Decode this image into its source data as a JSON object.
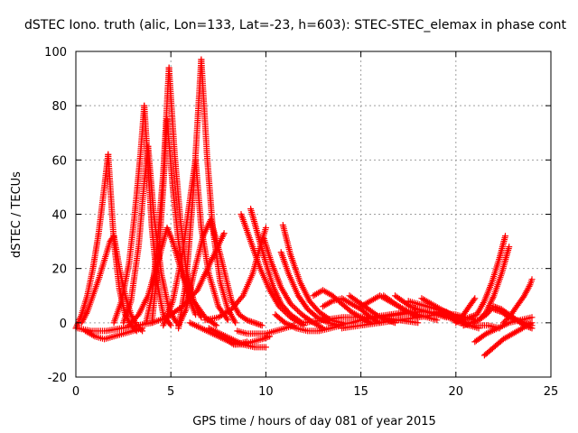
{
  "chart_data": {
    "type": "scatter",
    "title": "dSTEC Iono. truth (alic, Lon=133, Lat=-23, h=603): STEC-STEC_elemax in phase cont",
    "xlabel": "GPS time / hours of day 081 of year 2015",
    "ylabel": "dSTEC  / TECUs",
    "xlim": [
      0,
      25
    ],
    "ylim": [
      -20,
      100
    ],
    "xticks": [
      0,
      5,
      10,
      15,
      20,
      25
    ],
    "yticks": [
      -20,
      0,
      20,
      40,
      60,
      80,
      100
    ],
    "grid": true,
    "marker": "+",
    "color": "#ff0000",
    "series": [
      {
        "x": [
          0.0,
          0.3,
          0.6,
          0.9,
          1.2,
          1.5,
          1.7
        ],
        "y": [
          -2,
          3,
          10,
          20,
          33,
          50,
          62
        ]
      },
      {
        "x": [
          1.7,
          2.0,
          2.3,
          2.6,
          2.9,
          3.2
        ],
        "y": [
          62,
          30,
          12,
          3,
          -1,
          -3
        ]
      },
      {
        "x": [
          0.3,
          0.6,
          0.9,
          1.2,
          1.5,
          1.8,
          2.0
        ],
        "y": [
          0,
          4,
          10,
          16,
          23,
          30,
          32
        ]
      },
      {
        "x": [
          2.0,
          2.3,
          2.6,
          2.9,
          3.2,
          3.5
        ],
        "y": [
          32,
          20,
          10,
          3,
          -1,
          -3
        ]
      },
      {
        "x": [
          2.0,
          2.4,
          2.8,
          3.1,
          3.4,
          3.6
        ],
        "y": [
          0,
          8,
          22,
          40,
          62,
          80
        ]
      },
      {
        "x": [
          3.6,
          3.8,
          4.0,
          4.3,
          4.6,
          5.0
        ],
        "y": [
          80,
          58,
          35,
          14,
          3,
          -1
        ]
      },
      {
        "x": [
          2.5,
          2.9,
          3.3,
          3.6,
          3.8
        ],
        "y": [
          0,
          8,
          28,
          52,
          65
        ]
      },
      {
        "x": [
          3.8,
          4.1,
          4.5,
          4.9,
          5.3
        ],
        "y": [
          65,
          40,
          18,
          5,
          0
        ]
      },
      {
        "x": [
          3.7,
          4.0,
          4.3,
          4.6,
          4.9
        ],
        "y": [
          0,
          10,
          30,
          55,
          94
        ]
      },
      {
        "x": [
          4.9,
          5.2,
          5.5,
          5.8,
          6.2,
          6.6
        ],
        "y": [
          94,
          62,
          38,
          20,
          8,
          2
        ]
      },
      {
        "x": [
          4.0,
          4.3,
          4.6,
          4.8
        ],
        "y": [
          0,
          20,
          50,
          75
        ]
      },
      {
        "x": [
          4.8,
          5.1,
          5.4,
          5.8,
          6.3
        ],
        "y": [
          75,
          50,
          30,
          12,
          3
        ]
      },
      {
        "x": [
          5.4,
          5.8,
          6.2,
          6.6
        ],
        "y": [
          -2,
          15,
          50,
          97
        ]
      },
      {
        "x": [
          6.6,
          6.9,
          7.2,
          7.6,
          8.0,
          8.4
        ],
        "y": [
          97,
          62,
          35,
          15,
          5,
          0
        ]
      },
      {
        "x": [
          4.6,
          5.1,
          5.6,
          6.0,
          6.3
        ],
        "y": [
          -1,
          8,
          25,
          45,
          60
        ]
      },
      {
        "x": [
          6.3,
          6.6,
          7.0,
          7.5,
          8.0
        ],
        "y": [
          60,
          35,
          18,
          6,
          1
        ]
      },
      {
        "x": [
          5.4,
          5.8,
          6.2,
          6.7,
          7.1,
          7.6,
          8.2
        ],
        "y": [
          -1,
          5,
          18,
          32,
          38,
          25,
          8
        ]
      },
      {
        "x": [
          8.2,
          8.6,
          9.0,
          9.4,
          9.8
        ],
        "y": [
          8,
          3,
          1,
          0,
          -1
        ]
      },
      {
        "x": [
          2.8,
          3.3,
          3.8,
          4.3,
          4.8,
          5.1
        ],
        "y": [
          -1,
          3,
          10,
          22,
          35,
          30
        ]
      },
      {
        "x": [
          5.1,
          5.6,
          6.2,
          6.8,
          7.4
        ],
        "y": [
          30,
          18,
          8,
          2,
          -1
        ]
      },
      {
        "x": [
          0.1,
          0.8,
          1.6,
          2.4,
          3.2,
          4.0,
          4.8,
          5.6,
          6.4,
          7.2,
          7.8
        ],
        "y": [
          -2,
          -3,
          -3,
          -2,
          -1,
          0,
          2,
          6,
          12,
          24,
          33
        ]
      },
      {
        "x": [
          0.5,
          1.0,
          1.5,
          2.0,
          2.5,
          3.0,
          3.5
        ],
        "y": [
          -3,
          -5,
          -6,
          -5,
          -4,
          -3,
          -2
        ]
      },
      {
        "x": [
          6.0,
          6.6,
          7.2,
          7.8,
          8.4,
          9.0
        ],
        "y": [
          0,
          -2,
          -4,
          -6,
          -8,
          -7
        ]
      },
      {
        "x": [
          7.0,
          7.6,
          8.2,
          8.8,
          9.4,
          10.0
        ],
        "y": [
          -2,
          -4,
          -6,
          -8,
          -9,
          -9
        ]
      },
      {
        "x": [
          7.5,
          7.9,
          8.3,
          8.8,
          9.3,
          9.8,
          10.2
        ],
        "y": [
          -4,
          -6,
          -8,
          -8,
          -7,
          -6,
          -5
        ]
      },
      {
        "x": [
          8.5,
          9.0,
          9.5,
          10.0,
          10.5,
          11.0,
          11.5
        ],
        "y": [
          -3,
          -4,
          -4,
          -4,
          -3,
          -2,
          -1
        ]
      },
      {
        "x": [
          6.8,
          7.5,
          8.2,
          8.8,
          9.3,
          9.7,
          10.0
        ],
        "y": [
          1,
          2,
          5,
          10,
          18,
          28,
          35
        ]
      },
      {
        "x": [
          8.7,
          9.2,
          9.7,
          10.2,
          10.7,
          11.3,
          12.0
        ],
        "y": [
          40,
          30,
          20,
          12,
          6,
          2,
          -1
        ]
      },
      {
        "x": [
          9.2,
          9.6,
          10.0,
          10.4,
          10.8,
          11.3,
          11.9
        ],
        "y": [
          42,
          32,
          22,
          13,
          7,
          3,
          0
        ]
      },
      {
        "x": [
          9.9,
          10.3,
          10.8,
          11.3,
          11.9,
          12.5,
          13.0
        ],
        "y": [
          31,
          22,
          13,
          7,
          3,
          0,
          -2
        ]
      },
      {
        "x": [
          10.9,
          11.3,
          11.8,
          12.3,
          12.8,
          13.4,
          14.0
        ],
        "y": [
          36,
          25,
          15,
          8,
          4,
          1,
          0
        ]
      },
      {
        "x": [
          10.8,
          11.2,
          11.7,
          12.2,
          12.7,
          13.3,
          13.9
        ],
        "y": [
          26,
          18,
          10,
          5,
          2,
          0,
          -1
        ]
      },
      {
        "x": [
          10.5,
          11.0,
          11.6,
          12.2,
          12.8,
          13.4,
          14.0
        ],
        "y": [
          3,
          0,
          -2,
          -3,
          -3,
          -2,
          -1
        ]
      },
      {
        "x": [
          12.5,
          13.0,
          13.5,
          14.0,
          14.5,
          15.0,
          15.5
        ],
        "y": [
          10,
          12,
          10,
          7,
          4,
          2,
          0
        ]
      },
      {
        "x": [
          13.0,
          13.5,
          14.0,
          14.5,
          15.0,
          15.5,
          16.0
        ],
        "y": [
          6,
          8,
          9,
          7,
          5,
          2,
          0
        ]
      },
      {
        "x": [
          12.0,
          13.0,
          14.0,
          15.0,
          16.0,
          17.0,
          18.0
        ],
        "y": [
          0,
          1,
          2,
          2,
          2,
          1,
          0
        ]
      },
      {
        "x": [
          14.4,
          14.8,
          15.2,
          15.6,
          16.0,
          16.4,
          16.8
        ],
        "y": [
          10,
          8,
          6,
          4,
          2,
          1,
          0
        ]
      },
      {
        "x": [
          15.0,
          15.5,
          16.0,
          16.5,
          17.0,
          17.5,
          18.0
        ],
        "y": [
          6,
          8,
          10,
          8,
          6,
          4,
          2
        ]
      },
      {
        "x": [
          13.5,
          14.5,
          15.5,
          16.5,
          17.5,
          18.5,
          19.5
        ],
        "y": [
          -1,
          0,
          2,
          3,
          4,
          4,
          3
        ]
      },
      {
        "x": [
          16.2,
          16.6,
          17.0,
          17.5,
          18.0,
          18.5,
          19.0
        ],
        "y": [
          10,
          8,
          6,
          4,
          3,
          2,
          1
        ]
      },
      {
        "x": [
          16.8,
          17.2,
          17.6,
          18.0,
          18.5,
          19.0,
          19.5
        ],
        "y": [
          10,
          8,
          6,
          5,
          4,
          3,
          2
        ]
      },
      {
        "x": [
          14.0,
          15.0,
          16.0,
          17.0,
          18.0,
          19.0,
          20.0
        ],
        "y": [
          -2,
          -1,
          0,
          1,
          2,
          3,
          2
        ]
      },
      {
        "x": [
          15.0,
          16.0,
          17.0,
          18.0,
          19.0,
          20.0,
          21.0
        ],
        "y": [
          1,
          2,
          3,
          4,
          4,
          3,
          1
        ]
      },
      {
        "x": [
          17.5,
          18.0,
          18.5,
          19.0,
          19.5,
          20.0,
          20.5
        ],
        "y": [
          8,
          7,
          6,
          5,
          4,
          2,
          1
        ]
      },
      {
        "x": [
          18.2,
          18.7,
          19.2,
          19.7,
          20.2,
          20.7,
          21.2
        ],
        "y": [
          9,
          7,
          5,
          3,
          1,
          -1,
          -2
        ]
      },
      {
        "x": [
          19.0,
          19.6,
          20.2,
          20.7,
          21.2,
          21.7,
          22.3
        ],
        "y": [
          4,
          2,
          0,
          -1,
          -1,
          -1,
          -2
        ]
      },
      {
        "x": [
          20.0,
          20.4,
          20.8,
          21.0
        ],
        "y": [
          0,
          3,
          7,
          9
        ]
      },
      {
        "x": [
          20.7,
          21.1,
          21.5,
          21.9,
          22.3,
          22.6
        ],
        "y": [
          2,
          3,
          8,
          15,
          24,
          32
        ]
      },
      {
        "x": [
          20.4,
          20.8,
          21.2,
          21.6,
          22.0,
          22.4,
          22.8
        ],
        "y": [
          -1,
          0,
          1,
          4,
          10,
          18,
          28
        ]
      },
      {
        "x": [
          21.2,
          21.6,
          22.0,
          22.4,
          22.8,
          23.2,
          23.6,
          24.0
        ],
        "y": [
          1,
          3,
          6,
          5,
          3,
          1,
          -1,
          -2
        ]
      },
      {
        "x": [
          22.0,
          22.4,
          22.8,
          23.2,
          23.6,
          24.0
        ],
        "y": [
          5,
          4,
          2,
          1,
          0,
          -1
        ]
      },
      {
        "x": [
          21.0,
          21.6,
          22.2,
          22.8,
          23.4,
          24.0
        ],
        "y": [
          -7,
          -4,
          -2,
          0,
          1,
          2
        ]
      },
      {
        "x": [
          21.5,
          22.0,
          22.5,
          23.0,
          23.5,
          24.0
        ],
        "y": [
          -12,
          -9,
          -6,
          -4,
          -2,
          0
        ]
      },
      {
        "x": [
          22.5,
          22.9,
          23.3,
          23.6,
          23.9,
          24.0
        ],
        "y": [
          0,
          3,
          7,
          10,
          14,
          16
        ]
      }
    ]
  }
}
